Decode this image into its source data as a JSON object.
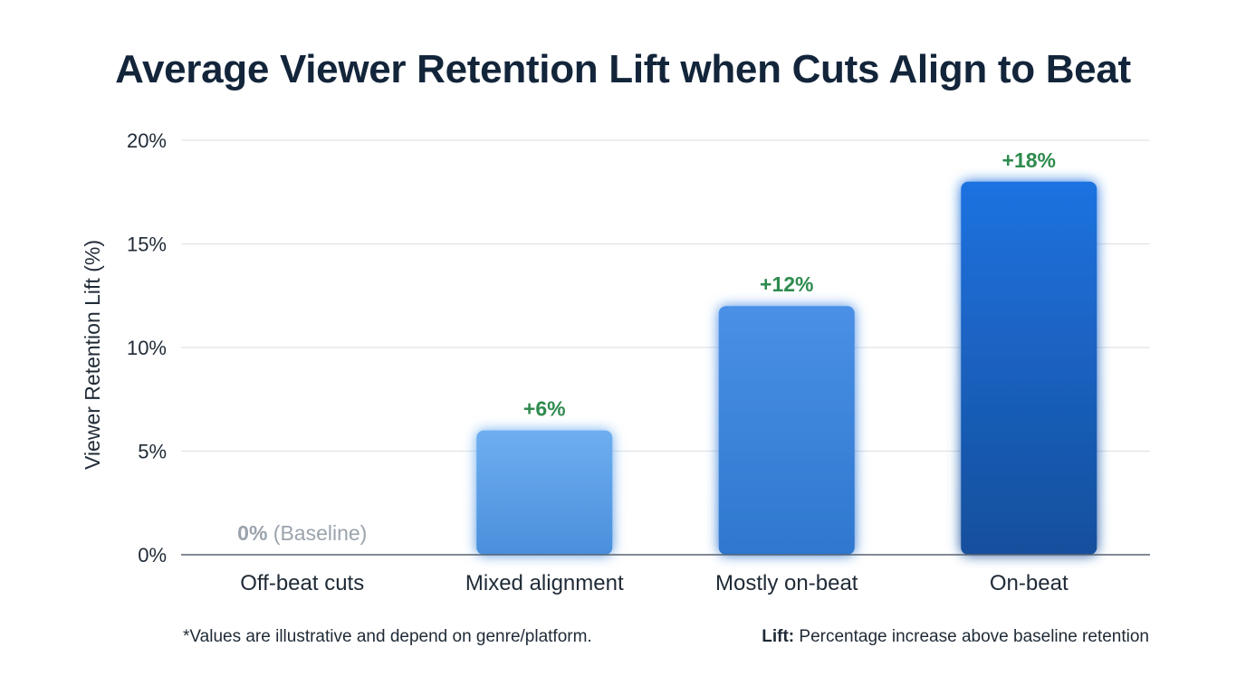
{
  "chart_data": {
    "type": "bar",
    "title": "Average Viewer Retention Lift when Cuts Align to Beat",
    "ylabel": "Viewer Retention Lift (%)",
    "xlabel": "",
    "categories": [
      "Off-beat cuts",
      "Mixed alignment",
      "Mostly on-beat",
      "On-beat"
    ],
    "values": [
      0,
      6,
      12,
      18
    ],
    "data_labels": [
      "0%",
      "+6%",
      "+12%",
      "+18%"
    ],
    "baseline_note": "(Baseline)",
    "ylim": [
      0,
      20
    ],
    "yticks": [
      0,
      5,
      10,
      15,
      20
    ],
    "ytick_labels": [
      "0%",
      "5%",
      "10%",
      "15%",
      "20%"
    ],
    "grid": true,
    "colors": {
      "bar_gradient": [
        [
          "#6eaef0",
          "#4a8fdc"
        ],
        [
          "#4a90e6",
          "#2f77cf"
        ],
        [
          "#1f72e0",
          "#154f9c"
        ]
      ],
      "label_positive": "#2e8b4e",
      "label_baseline": "#9aa3ad",
      "grid": "#e0e4e8",
      "axis": "#5a6470"
    }
  },
  "footnote": "*Values are illustrative and depend on genre/platform.",
  "legend_note": {
    "term": "Lift:",
    "text": " Percentage increase above baseline retention"
  }
}
